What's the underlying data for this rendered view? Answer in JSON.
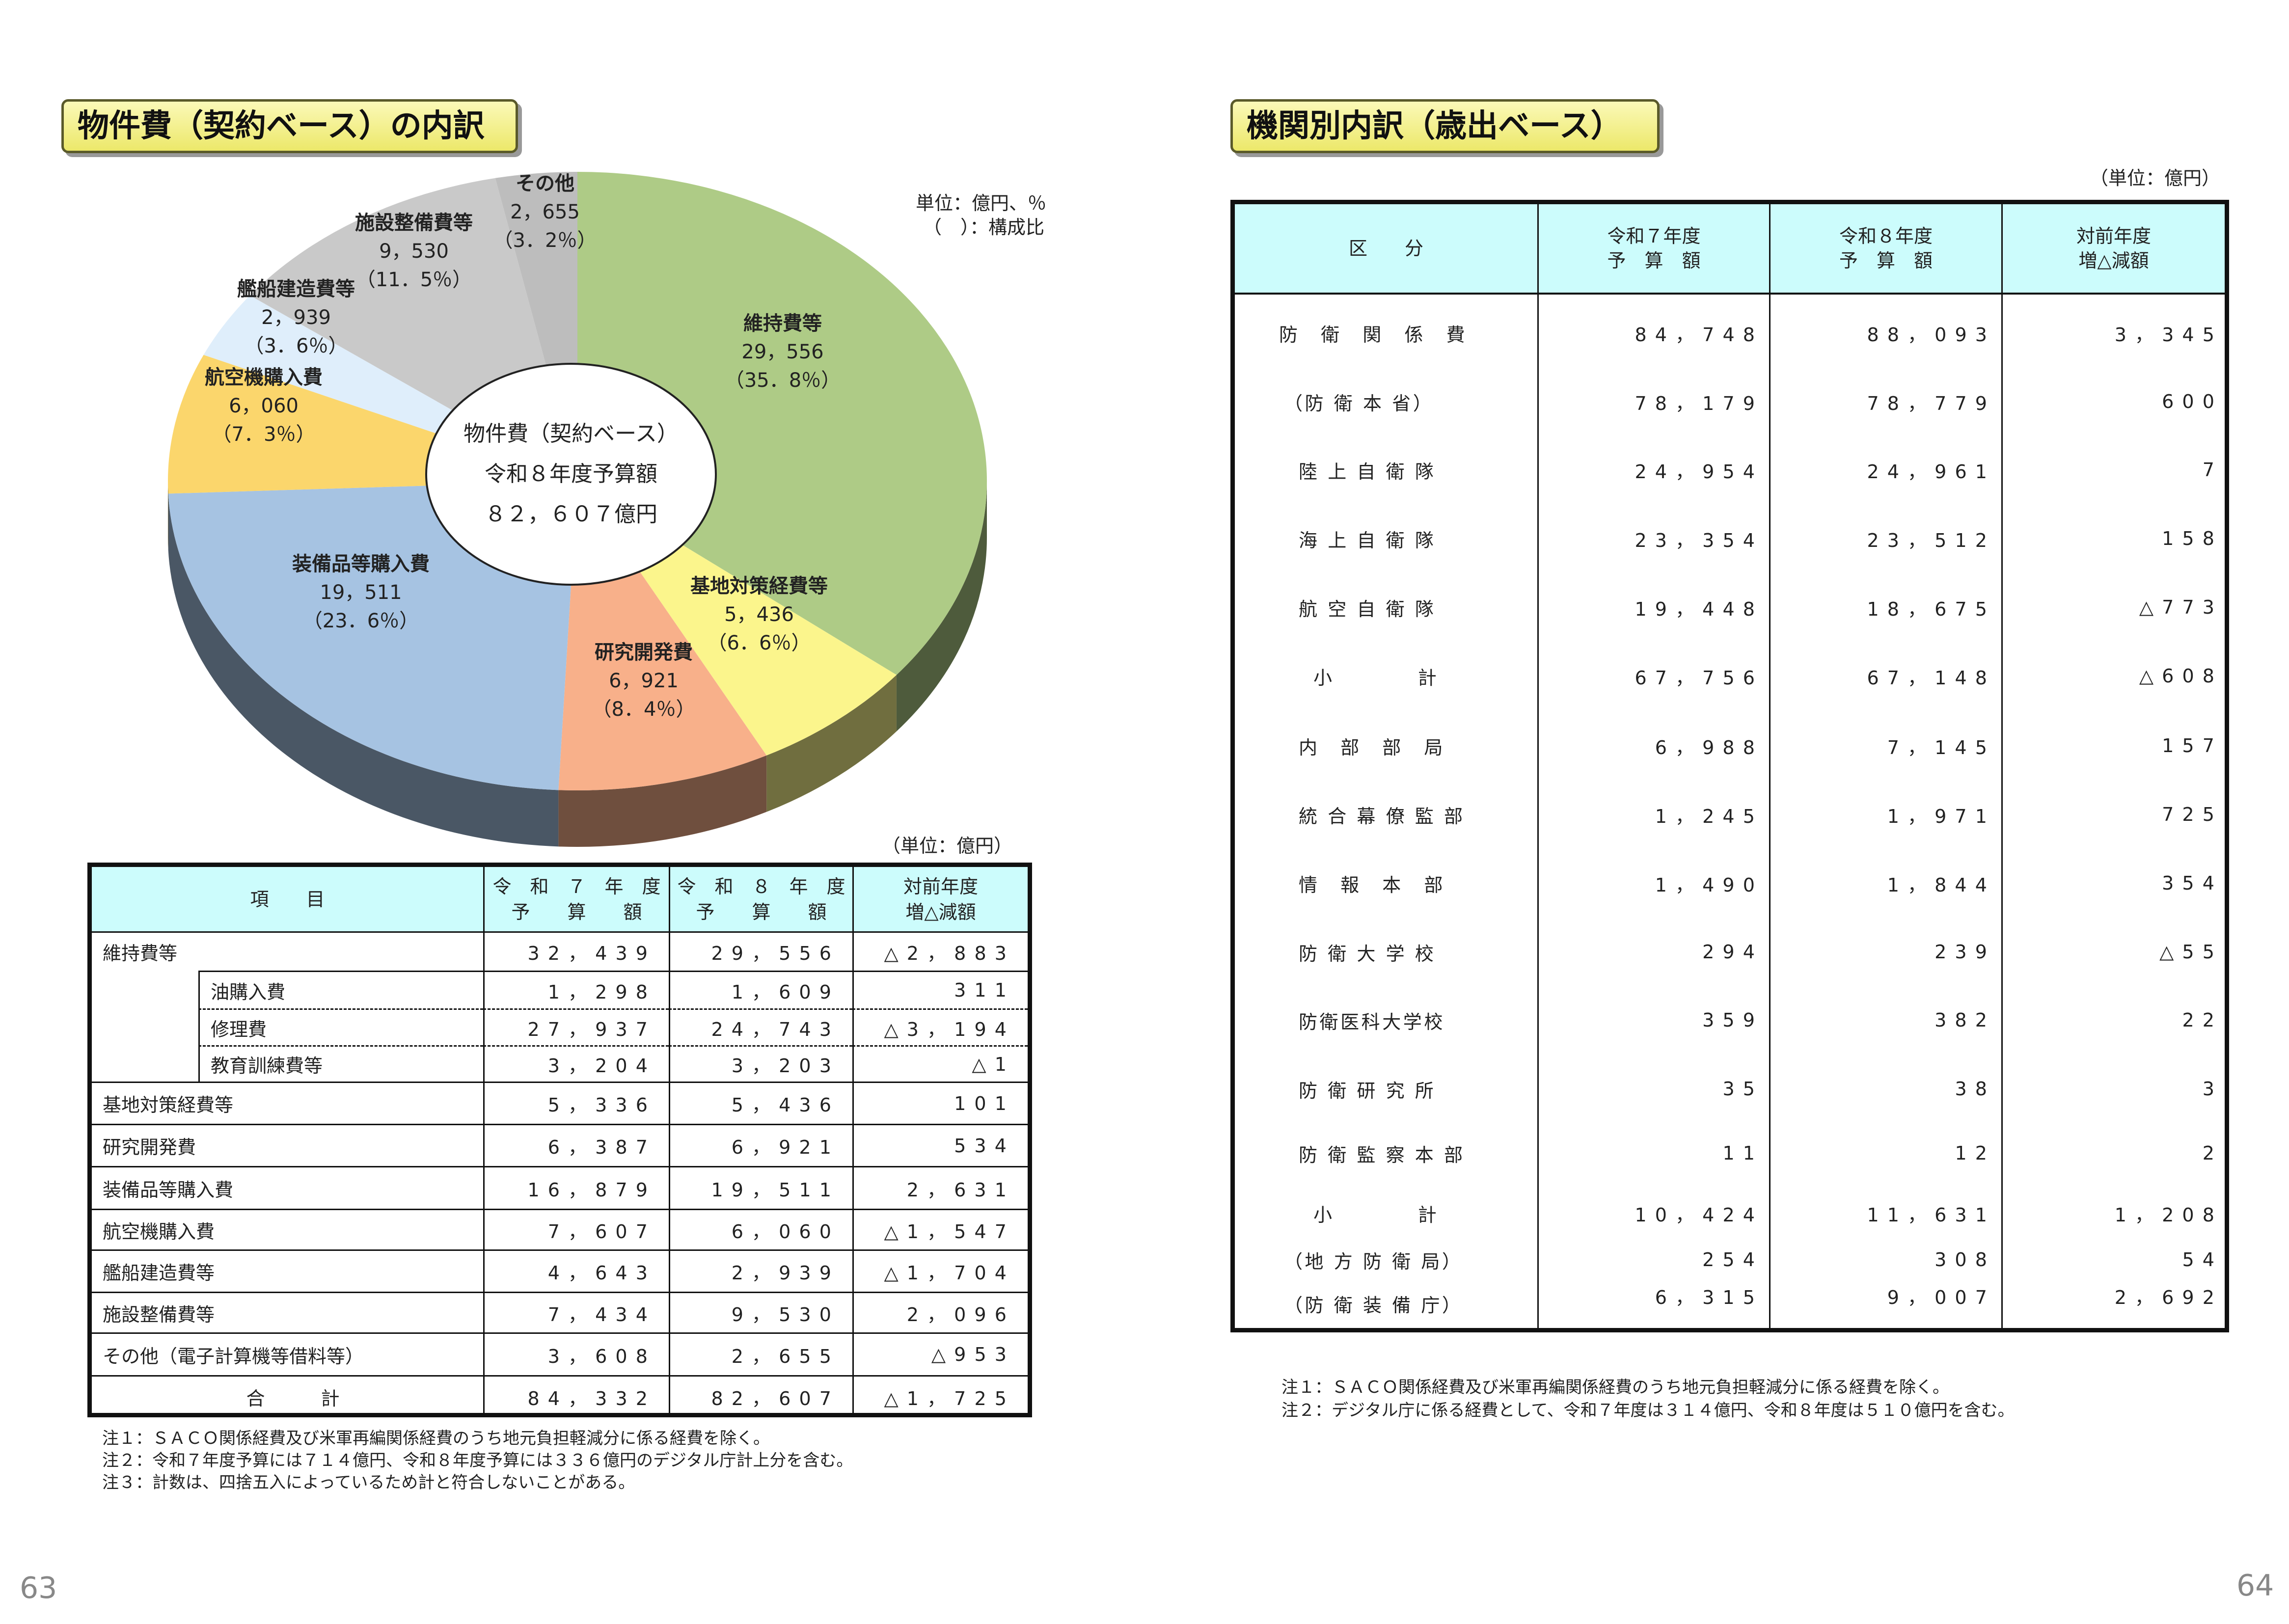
{
  "left": {
    "title": "物件費（契約ベース）の内訳",
    "pie_unit_1": "単位：億円、％",
    "pie_unit_2": "（　）：構成比",
    "center_1": "物件費（契約ベース）",
    "center_2": "令和８年度予算額",
    "center_3": "８２，６０７億円",
    "table_unit": "（単位：億円）",
    "headers": [
      "項　　目",
      "令　和　７　年　度",
      "予　　算　　額",
      "令　和　８　年　度",
      "予　　算　　額",
      "対前年度",
      "増△減額"
    ],
    "rows": [
      {
        "label": "維持費等",
        "v7": "32，439",
        "v8": "29，556",
        "diff": "△2，883"
      },
      {
        "label": "油購入費",
        "v7": "1，298",
        "v8": "1，609",
        "diff": "311",
        "sub": true
      },
      {
        "label": "修理費",
        "v7": "27，937",
        "v8": "24，743",
        "diff": "△3，194",
        "sub": true
      },
      {
        "label": "教育訓練費等",
        "v7": "3，204",
        "v8": "3，203",
        "diff": "△1",
        "sub": true
      },
      {
        "label": "基地対策経費等",
        "v7": "5，336",
        "v8": "5，436",
        "diff": "101"
      },
      {
        "label": "研究開発費",
        "v7": "6，387",
        "v8": "6，921",
        "diff": "534"
      },
      {
        "label": "装備品等購入費",
        "v7": "16，879",
        "v8": "19，511",
        "diff": "2，631"
      },
      {
        "label": "航空機購入費",
        "v7": "7，607",
        "v8": "6，060",
        "diff": "△1，547"
      },
      {
        "label": "艦船建造費等",
        "v7": "4，643",
        "v8": "2，939",
        "diff": "△1，704"
      },
      {
        "label": "施設整備費等",
        "v7": "7，434",
        "v8": "9，530",
        "diff": "2，096"
      },
      {
        "label": "その他（電子計算機等借料等）",
        "v7": "3，608",
        "v8": "2，655",
        "diff": "△953"
      },
      {
        "label": "合　　　計",
        "v7": "84，332",
        "v8": "82，607",
        "diff": "△1，725",
        "total": true
      }
    ],
    "notes": [
      "注１：ＳＡＣＯ関係経費及び米軍再編関係経費のうち地元負担軽減分に係る経費を除く。",
      "注２：令和７年度予算には７１４億円、令和８年度予算には３３６億円のデジタル庁計上分を含む。",
      "注３：計数は、四捨五入によっているため計と符合しないことがある。"
    ],
    "page_number": "63"
  },
  "chart_data": {
    "type": "pie",
    "title": "物件費（契約ベース）の内訳",
    "unit": "億円",
    "slices": [
      {
        "label": "維持費等",
        "value": 29556,
        "value_text": "29，556",
        "percent": 35.8,
        "percent_text": "（35．8％）",
        "color": "#aecb86"
      },
      {
        "label": "基地対策経費等",
        "value": 5436,
        "value_text": "5，436",
        "percent": 6.6,
        "percent_text": "（6．6％）",
        "color": "#fbf58c"
      },
      {
        "label": "研究開発費",
        "value": 6921,
        "value_text": "6，921",
        "percent": 8.4,
        "percent_text": "（8．4％）",
        "color": "#f8b08a"
      },
      {
        "label": "装備品等購入費",
        "value": 19511,
        "value_text": "19，511",
        "percent": 23.6,
        "percent_text": "（23．6％）",
        "color": "#a6c3e2"
      },
      {
        "label": "航空機購入費",
        "value": 6060,
        "value_text": "6，060",
        "percent": 7.3,
        "percent_text": "（7．3％）",
        "color": "#fbd66c"
      },
      {
        "label": "艦船建造費等",
        "value": 2939,
        "value_text": "2，939",
        "percent": 3.6,
        "percent_text": "（3．6％）",
        "color": "#dfeefb"
      },
      {
        "label": "施設整備費等",
        "value": 9530,
        "value_text": "9，530",
        "percent": 11.5,
        "percent_text": "（11．5％）",
        "color": "#c9c9c9"
      },
      {
        "label": "その他",
        "value": 2655,
        "value_text": "2，655",
        "percent": 3.2,
        "percent_text": "（3．2％）",
        "color": "#bdbdbd"
      }
    ]
  },
  "right": {
    "title": "機関別内訳（歳出ベース）",
    "table_unit": "（単位：億円）",
    "headers": [
      "区　　分",
      "令和７年度",
      "予　算　額",
      "令和８年度",
      "予　算　額",
      "対前年度",
      "増△減額"
    ],
    "rows": [
      {
        "label": "防　衛　関　係　費",
        "v7": "84，748",
        "v8": "88，093",
        "diff": "3，345"
      },
      {
        "label": "（防 衛 本 省）",
        "v7": "78，179",
        "v8": "78，779",
        "diff": "600"
      },
      {
        "label": "陸 上 自 衛 隊",
        "v7": "24，954",
        "v8": "24，961",
        "diff": "7"
      },
      {
        "label": "海 上 自 衛 隊",
        "v7": "23，354",
        "v8": "23，512",
        "diff": "158"
      },
      {
        "label": "航 空 自 衛 隊",
        "v7": "19，448",
        "v8": "18，675",
        "diff": "△773"
      },
      {
        "label": "小　　　　計",
        "v7": "67，756",
        "v8": "67，148",
        "diff": "△608"
      },
      {
        "label": "内　部　部　局",
        "v7": "6，988",
        "v8": "7，145",
        "diff": "157"
      },
      {
        "label": "統 合 幕 僚 監 部",
        "v7": "1，245",
        "v8": "1，971",
        "diff": "725"
      },
      {
        "label": "情　報　本　部",
        "v7": "1，490",
        "v8": "1，844",
        "diff": "354"
      },
      {
        "label": "防 衛 大 学 校",
        "v7": "294",
        "v8": "239",
        "diff": "△55"
      },
      {
        "label": "防衛医科大学校",
        "v7": "359",
        "v8": "382",
        "diff": "22"
      },
      {
        "label": "防 衛 研 究 所",
        "v7": "35",
        "v8": "38",
        "diff": "3"
      },
      {
        "label": "防 衛 監 察 本 部",
        "v7": "11",
        "v8": "12",
        "diff": "2"
      },
      {
        "label": "小　　　　計",
        "v7": "10，424",
        "v8": "11，631",
        "diff": "1，208"
      },
      {
        "label": "（地 方 防 衛 局）",
        "v7": "254",
        "v8": "308",
        "diff": "54"
      },
      {
        "label": "（防 衛 装 備 庁）",
        "v7": "6，315",
        "v8": "9，007",
        "diff": "2，692"
      }
    ],
    "notes": [
      "注１：ＳＡＣＯ関係経費及び米軍再編関係経費のうち地元負担軽減分に係る経費を除く。",
      "注２：デジタル庁に係る経費として、令和７年度は３１４億円、令和８年度は５１０億円を含む。"
    ],
    "page_number": "64"
  }
}
